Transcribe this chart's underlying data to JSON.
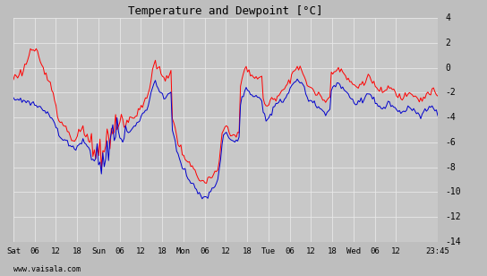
{
  "title": "Temperature and Dewpoint [°C]",
  "ylim": [
    -14,
    4
  ],
  "bg_color": "#bebebe",
  "plot_bg_color": "#c8c8c8",
  "grid_color": "#e8e8e8",
  "temp_color": "#ff0000",
  "dew_color": "#0000cc",
  "watermark": "www.vaisala.com",
  "x_labels": [
    "Sat",
    "06",
    "12",
    "18",
    "Sun",
    "06",
    "12",
    "18",
    "Mon",
    "06",
    "12",
    "18",
    "Tue",
    "06",
    "12",
    "18",
    "Wed",
    "06",
    "12",
    "23:45"
  ],
  "total_hours": 119.75,
  "temp_data": [
    -0.8,
    -0.7,
    -0.7,
    -0.6,
    -0.5,
    -0.4,
    -0.3,
    -0.2,
    0.1,
    0.4,
    0.7,
    1.0,
    1.3,
    1.5,
    1.5,
    1.4,
    1.2,
    1.0,
    0.7,
    0.4,
    0.1,
    -0.2,
    -0.4,
    -0.6,
    -0.8,
    -1.0,
    -1.3,
    -1.6,
    -2.0,
    -2.5,
    -3.0,
    -3.5,
    -4.0,
    -4.3,
    -4.5,
    -4.6,
    -4.7,
    -4.8,
    -5.0,
    -5.2,
    -5.4,
    -5.6,
    -5.8,
    -6.0,
    -5.8,
    -5.5,
    -5.3,
    -5.2,
    -5.1,
    -5.0,
    -5.2,
    -5.4,
    -5.6,
    -5.8,
    -6.0,
    -6.2,
    -6.5,
    -6.8,
    -7.0,
    -7.2,
    -7.3,
    -7.3,
    -7.2,
    -7.0,
    -6.8,
    -6.5,
    -6.2,
    -5.9,
    -5.6,
    -5.3,
    -5.0,
    -4.8,
    -4.6,
    -4.5,
    -4.4,
    -4.4,
    -4.5,
    -4.6,
    -4.6,
    -4.5,
    -4.4,
    -4.3,
    -4.2,
    -4.1,
    -4.0,
    -3.9,
    -3.8,
    -3.7,
    -3.6,
    -3.4,
    -3.2,
    -3.0,
    -2.8,
    -2.6,
    -2.4,
    -2.2,
    -1.5,
    -0.8,
    -0.2,
    0.3,
    0.5,
    0.2,
    -0.1,
    -0.3,
    -0.5,
    -0.7,
    -0.8,
    -0.8,
    -0.7,
    -0.6,
    -0.5,
    -0.4,
    -4.0,
    -4.5,
    -5.0,
    -5.5,
    -6.0,
    -6.3,
    -6.5,
    -6.7,
    -7.0,
    -7.3,
    -7.5,
    -7.7,
    -7.8,
    -7.9,
    -8.0,
    -8.2,
    -8.3,
    -8.5,
    -8.7,
    -8.9,
    -9.0,
    -9.1,
    -9.2,
    -9.3,
    -9.2,
    -9.1,
    -9.0,
    -8.8,
    -8.7,
    -8.6,
    -8.5,
    -8.4,
    -8.3,
    -7.5,
    -6.5,
    -5.5,
    -5.0,
    -4.8,
    -4.7,
    -4.8,
    -5.0,
    -5.2,
    -5.3,
    -5.4,
    -5.5,
    -5.5,
    -5.4,
    -5.2,
    -1.5,
    -0.9,
    -0.5,
    -0.2,
    0.0,
    -0.2,
    -0.4,
    -0.5,
    -0.6,
    -0.7,
    -0.7,
    -0.7,
    -0.8,
    -0.8,
    -0.8,
    -0.9,
    -2.5,
    -2.8,
    -3.0,
    -3.1,
    -3.0,
    -2.8,
    -2.6,
    -2.5,
    -2.4,
    -2.3,
    -2.2,
    -2.1,
    -2.0,
    -1.9,
    -1.8,
    -1.7,
    -1.5,
    -1.3,
    -1.0,
    -0.8,
    -0.5,
    -0.3,
    -0.2,
    -0.1,
    0.0,
    -0.1,
    -0.2,
    -0.3,
    -0.5,
    -0.7,
    -1.0,
    -1.3,
    -1.5,
    -1.6,
    -1.7,
    -1.8,
    -1.9,
    -2.0,
    -2.1,
    -2.2,
    -2.3,
    -2.4,
    -2.5,
    -2.6,
    -2.6,
    -2.5,
    -2.4,
    -2.3,
    -0.5,
    -0.3,
    -0.2,
    -0.1,
    0.0,
    0.0,
    -0.1,
    -0.2,
    -0.3,
    -0.5,
    -0.7,
    -0.9,
    -1.0,
    -1.1,
    -1.2,
    -1.3,
    -1.4,
    -1.5,
    -1.6,
    -1.5,
    -1.4,
    -1.3,
    -1.2,
    -1.1,
    -1.0,
    -0.9,
    -0.8,
    -0.8,
    -0.9,
    -1.0,
    -1.2,
    -1.5,
    -1.7,
    -1.8,
    -1.9,
    -2.0,
    -2.0,
    -1.9,
    -1.8,
    -1.7,
    -1.6,
    -1.6,
    -1.7,
    -1.8,
    -1.9,
    -2.0,
    -2.1,
    -2.2,
    -2.3,
    -2.4,
    -2.4,
    -2.3,
    -2.2,
    -2.1,
    -2.0,
    -1.9,
    -1.9,
    -2.0,
    -2.1,
    -2.2,
    -2.3,
    -2.4,
    -2.5,
    -2.6,
    -2.5,
    -2.4,
    -2.3,
    -2.2,
    -2.1,
    -2.0,
    -1.9,
    -1.8,
    -1.9,
    -2.0,
    -2.2,
    -2.4
  ],
  "dew_data": [
    -2.5,
    -2.5,
    -2.5,
    -2.6,
    -2.6,
    -2.6,
    -2.7,
    -2.7,
    -2.7,
    -2.8,
    -2.8,
    -2.8,
    -2.9,
    -2.9,
    -2.9,
    -3.0,
    -3.0,
    -3.1,
    -3.1,
    -3.2,
    -3.2,
    -3.3,
    -3.4,
    -3.5,
    -3.6,
    -3.7,
    -3.8,
    -4.0,
    -4.2,
    -4.5,
    -4.8,
    -5.1,
    -5.4,
    -5.6,
    -5.7,
    -5.8,
    -5.8,
    -5.9,
    -6.0,
    -6.1,
    -6.2,
    -6.3,
    -6.4,
    -6.5,
    -6.4,
    -6.3,
    -6.2,
    -6.1,
    -6.0,
    -5.9,
    -6.0,
    -6.1,
    -6.2,
    -6.3,
    -6.5,
    -6.7,
    -6.9,
    -7.1,
    -7.2,
    -7.3,
    -7.4,
    -7.4,
    -7.3,
    -7.2,
    -7.0,
    -6.8,
    -6.5,
    -6.2,
    -5.9,
    -5.7,
    -5.5,
    -5.3,
    -5.2,
    -5.1,
    -5.1,
    -5.2,
    -5.3,
    -5.4,
    -5.4,
    -5.3,
    -5.2,
    -5.1,
    -5.0,
    -4.9,
    -4.8,
    -4.7,
    -4.6,
    -4.5,
    -4.4,
    -4.2,
    -4.0,
    -3.8,
    -3.6,
    -3.4,
    -3.2,
    -3.0,
    -2.5,
    -2.0,
    -1.6,
    -1.3,
    -1.2,
    -1.4,
    -1.6,
    -1.8,
    -2.0,
    -2.2,
    -2.3,
    -2.4,
    -2.3,
    -2.2,
    -2.1,
    -2.0,
    -5.0,
    -5.5,
    -6.0,
    -6.5,
    -7.0,
    -7.3,
    -7.6,
    -7.8,
    -8.0,
    -8.3,
    -8.6,
    -8.8,
    -9.0,
    -9.2,
    -9.3,
    -9.5,
    -9.6,
    -9.8,
    -10.0,
    -10.2,
    -10.3,
    -10.4,
    -10.5,
    -10.5,
    -10.4,
    -10.3,
    -10.2,
    -10.0,
    -9.8,
    -9.6,
    -9.5,
    -9.3,
    -9.1,
    -8.2,
    -7.2,
    -6.2,
    -5.6,
    -5.3,
    -5.2,
    -5.3,
    -5.5,
    -5.7,
    -5.8,
    -5.9,
    -6.0,
    -6.0,
    -5.9,
    -5.7,
    -3.0,
    -2.5,
    -2.1,
    -1.8,
    -1.7,
    -1.8,
    -2.0,
    -2.2,
    -2.3,
    -2.4,
    -2.4,
    -2.4,
    -2.5,
    -2.5,
    -2.5,
    -2.6,
    -3.5,
    -3.8,
    -4.0,
    -4.0,
    -3.9,
    -3.7,
    -3.5,
    -3.3,
    -3.2,
    -3.1,
    -3.0,
    -2.9,
    -2.8,
    -2.7,
    -2.6,
    -2.5,
    -2.3,
    -2.1,
    -1.9,
    -1.7,
    -1.5,
    -1.3,
    -1.2,
    -1.1,
    -1.0,
    -1.1,
    -1.2,
    -1.3,
    -1.5,
    -1.7,
    -2.0,
    -2.3,
    -2.5,
    -2.6,
    -2.7,
    -2.8,
    -2.9,
    -3.0,
    -3.1,
    -3.2,
    -3.3,
    -3.4,
    -3.5,
    -3.6,
    -3.6,
    -3.5,
    -3.4,
    -3.3,
    -1.8,
    -1.6,
    -1.5,
    -1.4,
    -1.3,
    -1.3,
    -1.4,
    -1.5,
    -1.6,
    -1.8,
    -2.0,
    -2.2,
    -2.3,
    -2.4,
    -2.5,
    -2.6,
    -2.7,
    -2.8,
    -2.9,
    -2.8,
    -2.7,
    -2.6,
    -2.5,
    -2.4,
    -2.3,
    -2.2,
    -2.1,
    -2.1,
    -2.2,
    -2.3,
    -2.5,
    -2.8,
    -3.0,
    -3.1,
    -3.2,
    -3.3,
    -3.3,
    -3.2,
    -3.1,
    -3.0,
    -2.9,
    -2.9,
    -3.0,
    -3.1,
    -3.2,
    -3.3,
    -3.4,
    -3.5,
    -3.6,
    -3.7,
    -3.7,
    -3.6,
    -3.5,
    -3.4,
    -3.3,
    -3.2,
    -3.2,
    -3.3,
    -3.4,
    -3.5,
    -3.6,
    -3.7,
    -3.8,
    -3.9,
    -3.8,
    -3.7,
    -3.6,
    -3.5,
    -3.4,
    -3.3,
    -3.2,
    -3.1,
    -3.2,
    -3.3,
    -3.5,
    -3.7
  ]
}
